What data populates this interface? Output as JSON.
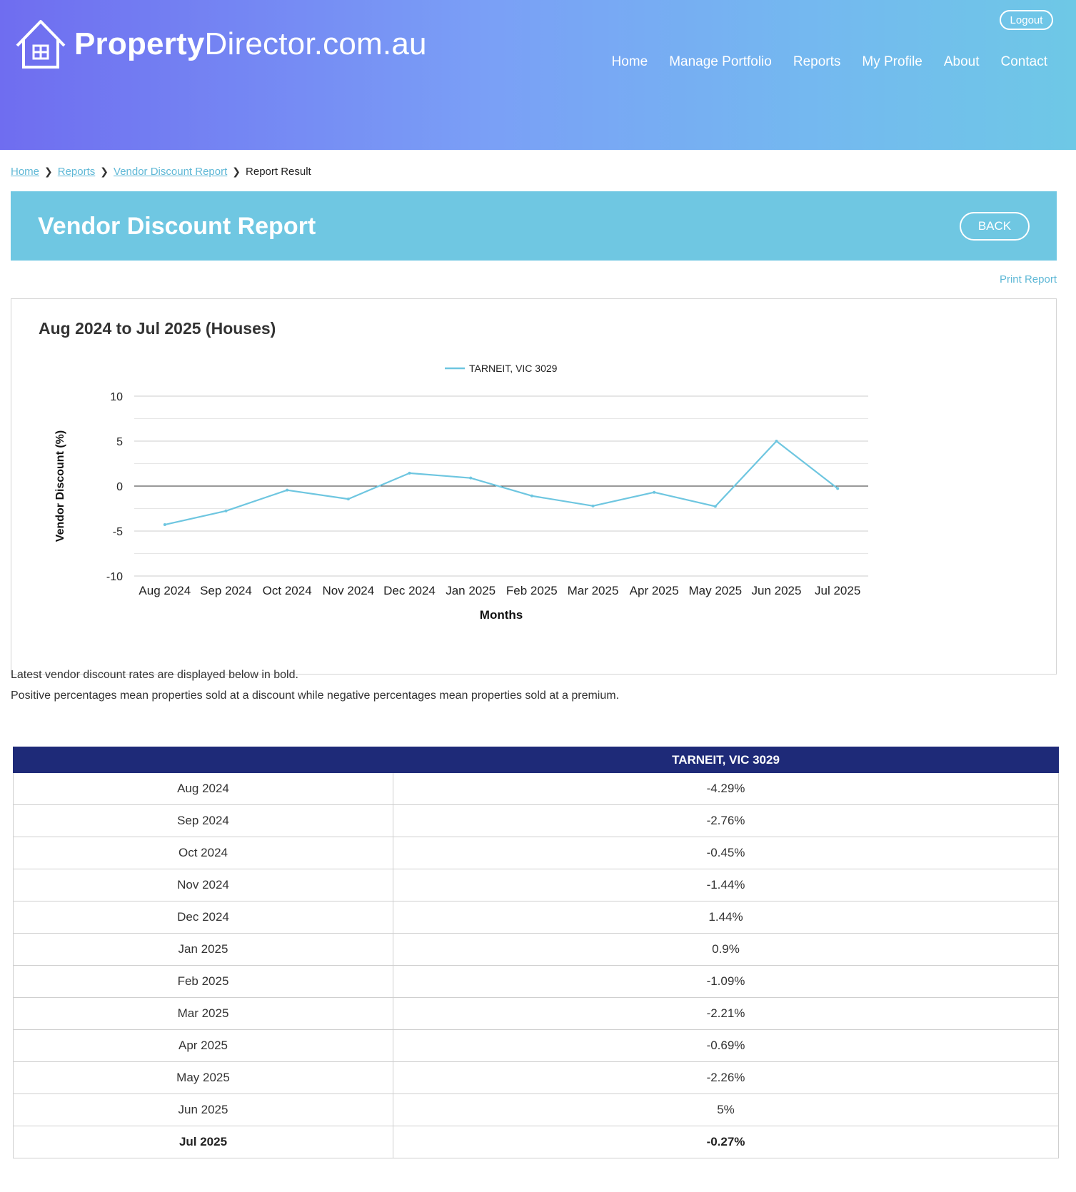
{
  "header": {
    "logo": {
      "bold": "Property",
      "regular": "Director.com.au"
    },
    "logout_label": "Logout",
    "nav": [
      "Home",
      "Manage Portfolio",
      "Reports",
      "My Profile",
      "About",
      "Contact"
    ]
  },
  "breadcrumb": {
    "links": [
      "Home",
      "Reports",
      "Vendor Discount Report"
    ],
    "current": "Report Result"
  },
  "banner": {
    "title": "Vendor Discount Report",
    "back_label": "BACK"
  },
  "print_label": "Print Report",
  "chart_data": {
    "type": "line",
    "title": "Aug 2024 to Jul 2025 (Houses)",
    "xlabel": "Months",
    "ylabel": "Vendor Discount (%)",
    "ylim": [
      -10,
      10
    ],
    "yticks": [
      10,
      5,
      0,
      -5,
      -10
    ],
    "grid": true,
    "legend_position": "top",
    "categories": [
      "Aug 2024",
      "Sep 2024",
      "Oct 2024",
      "Nov 2024",
      "Dec 2024",
      "Jan 2025",
      "Feb 2025",
      "Mar 2025",
      "Apr 2025",
      "May 2025",
      "Jun 2025",
      "Jul 2025"
    ],
    "series": [
      {
        "name": "TARNEIT, VIC 3029",
        "color": "#6ec6e0",
        "values": [
          -4.29,
          -2.76,
          -0.45,
          -1.44,
          1.44,
          0.9,
          -1.09,
          -2.21,
          -0.69,
          -2.26,
          5,
          -0.27
        ]
      }
    ]
  },
  "notes": [
    "Latest vendor discount rates are displayed below in bold.",
    "Positive percentages mean properties sold at a discount while negative percentages mean properties sold at a premium."
  ],
  "table": {
    "headers": [
      "",
      "TARNEIT, VIC 3029"
    ],
    "rows": [
      [
        "Aug 2024",
        "-4.29%"
      ],
      [
        "Sep 2024",
        "-2.76%"
      ],
      [
        "Oct 2024",
        "-0.45%"
      ],
      [
        "Nov 2024",
        "-1.44%"
      ],
      [
        "Dec 2024",
        "1.44%"
      ],
      [
        "Jan 2025",
        "0.9%"
      ],
      [
        "Feb 2025",
        "-1.09%"
      ],
      [
        "Mar 2025",
        "-2.21%"
      ],
      [
        "Apr 2025",
        "-0.69%"
      ],
      [
        "May 2025",
        "-2.26%"
      ],
      [
        "Jun 2025",
        "5%"
      ],
      [
        "Jul 2025",
        "-0.27%"
      ]
    ],
    "bold_row": 11
  },
  "colors": {
    "header_table": "#1e2a78",
    "banner": "#6fc7e2",
    "link": "#5fb8d6"
  }
}
